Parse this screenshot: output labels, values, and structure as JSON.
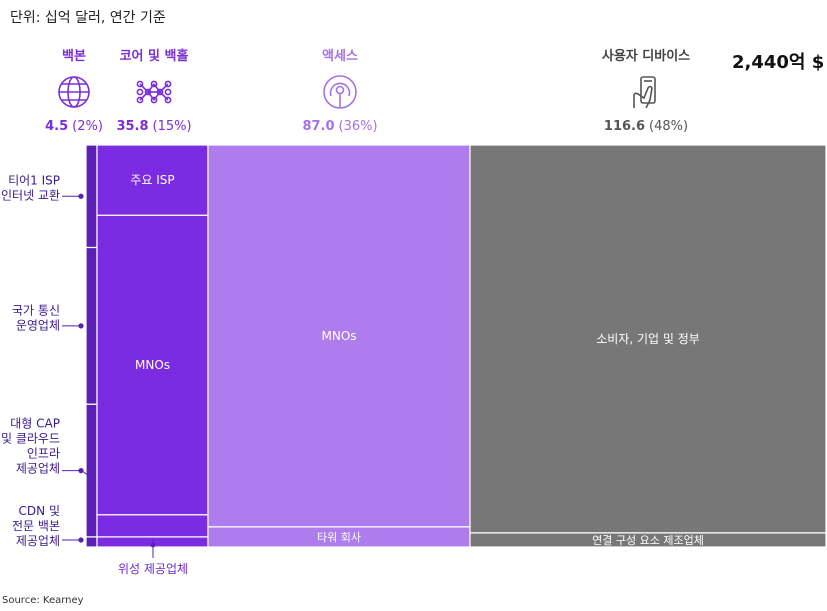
{
  "chart_data": {
    "type": "mekko",
    "unit_label": "단위: 십억 달러, 연간 기준",
    "total": "2,440억 $",
    "source": "Source: Kearney",
    "segments": [
      {
        "name": "백본",
        "value": 4.5,
        "value_text": "4.5",
        "share_text": "(2%)",
        "color": "#5a1fb4",
        "icon": "globe-icon"
      },
      {
        "name": "코어 및 백홀",
        "value": 35.8,
        "value_text": "35.8",
        "share_text": "(15%)",
        "color": "#7b2be2",
        "icon": "network-nodes-icon"
      },
      {
        "name": "액세스",
        "value": 87.0,
        "value_text": "87.0",
        "share_text": "(36%)",
        "color": "#ae7ced",
        "icon": "broadcast-tower-icon"
      },
      {
        "name": "사용자 디바이스",
        "value": 116.6,
        "value_text": "116.6",
        "share_text": "(48%)",
        "color": "#777777",
        "icon": "smartphone-hand-icon"
      }
    ],
    "blocks": [
      {
        "segment": 1,
        "label": "주요 ISP",
        "share": 0.175
      },
      {
        "segment": 1,
        "label": "MNOs",
        "share": 0.745
      },
      {
        "segment": 1,
        "label": "",
        "share": 0.055
      },
      {
        "segment": 1,
        "label": "",
        "share": 0.025
      },
      {
        "segment": 2,
        "label": "MNOs",
        "share": 0.95
      },
      {
        "segment": 2,
        "label": "타워 회사",
        "share": 0.05
      },
      {
        "segment": 3,
        "label": "소비자, 기업 및 정부",
        "share": 0.965
      },
      {
        "segment": 3,
        "label": "연결 구성 요소 제조업체",
        "share": 0.035
      }
    ],
    "backbone_blocks": [
      {
        "label": "티어1 ISP\n인터넷 교환",
        "share": 0.255
      },
      {
        "label": "국가 통신\n운영업체",
        "share": 0.39
      },
      {
        "label": "대형 CAP\n및 클라우드\n인프라\n제공업체",
        "share": 0.33
      },
      {
        "label": "CDN 및\n전문 백본\n제공업체",
        "share": 0.025
      }
    ],
    "bottom_annotation": "위성 제공업체"
  }
}
